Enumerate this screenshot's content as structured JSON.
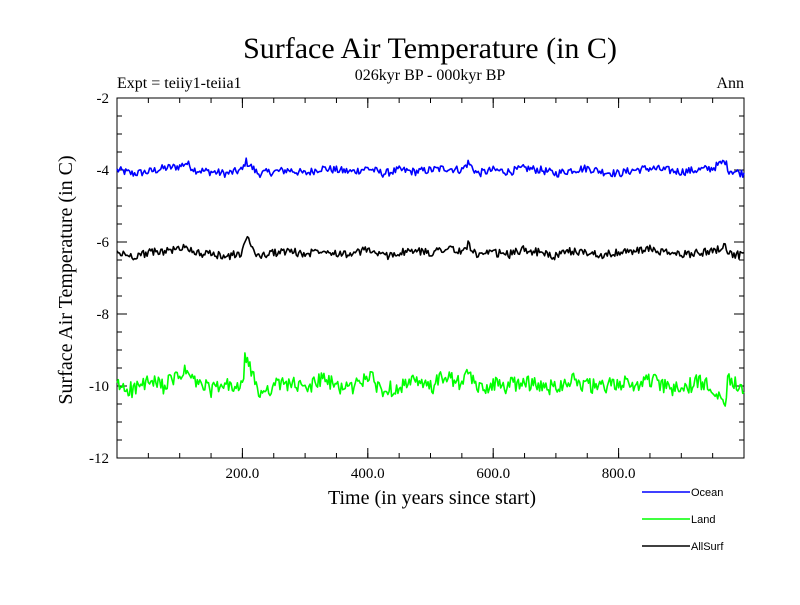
{
  "chart_data": {
    "type": "line",
    "title": "Surface Air Temperature (in C)",
    "subtitle": "026kyr BP - 000kyr BP",
    "experiment_label": "Expt = teiiy1-teiia1",
    "period_label": "Ann",
    "xlabel": "Time (in years since start)",
    "ylabel": "Surface Air Temperature (in C)",
    "xlim": [
      0,
      1000
    ],
    "ylim": [
      -12,
      -2
    ],
    "x_ticks": [
      200,
      400,
      600,
      800
    ],
    "x_tick_labels": [
      "200.0",
      "400.0",
      "600.0",
      "800.0"
    ],
    "y_ticks": [
      -2,
      -4,
      -6,
      -8,
      -10,
      -12
    ],
    "y_tick_labels": [
      "-2",
      "-4",
      "-6",
      "-8",
      "-10",
      "-12"
    ],
    "grid": false,
    "legend_position": "bottom-right",
    "series": [
      {
        "name": "Ocean",
        "color": "#0000ff",
        "x": [
          0,
          25,
          50,
          75,
          100,
          110,
          125,
          150,
          175,
          200,
          205,
          225,
          250,
          275,
          300,
          325,
          350,
          375,
          400,
          425,
          450,
          475,
          500,
          525,
          550,
          560,
          575,
          600,
          625,
          650,
          675,
          700,
          725,
          750,
          775,
          800,
          825,
          850,
          875,
          900,
          925,
          950,
          970,
          975,
          1000
        ],
        "values": [
          -4.0,
          -4.1,
          -4.05,
          -3.95,
          -3.9,
          -3.8,
          -4.0,
          -4.05,
          -4.1,
          -4.0,
          -3.75,
          -4.1,
          -4.05,
          -4.0,
          -4.1,
          -3.95,
          -4.0,
          -4.05,
          -3.95,
          -4.1,
          -4.0,
          -4.05,
          -4.0,
          -3.95,
          -4.0,
          -3.8,
          -4.1,
          -4.0,
          -4.05,
          -3.95,
          -4.0,
          -4.1,
          -4.0,
          -3.95,
          -4.05,
          -4.1,
          -4.0,
          -3.95,
          -4.0,
          -4.05,
          -4.0,
          -3.95,
          -3.75,
          -4.0,
          -4.1
        ]
      },
      {
        "name": "Land",
        "color": "#00ff00",
        "x": [
          0,
          25,
          50,
          75,
          100,
          110,
          125,
          150,
          175,
          200,
          205,
          225,
          250,
          275,
          300,
          325,
          350,
          375,
          400,
          425,
          450,
          475,
          500,
          525,
          550,
          560,
          575,
          600,
          625,
          650,
          675,
          700,
          725,
          750,
          775,
          800,
          825,
          850,
          875,
          900,
          925,
          950,
          970,
          975,
          1000
        ],
        "values": [
          -10.0,
          -10.1,
          -9.9,
          -10.0,
          -9.7,
          -9.6,
          -9.9,
          -10.1,
          -10.0,
          -10.05,
          -9.1,
          -10.2,
          -10.0,
          -9.9,
          -10.1,
          -9.8,
          -10.0,
          -10.05,
          -9.7,
          -10.15,
          -10.0,
          -9.9,
          -10.05,
          -9.7,
          -10.0,
          -9.6,
          -10.1,
          -9.95,
          -10.0,
          -9.85,
          -10.05,
          -10.0,
          -9.8,
          -10.0,
          -10.05,
          -9.9,
          -10.0,
          -9.8,
          -10.05,
          -10.1,
          -9.9,
          -10.0,
          -10.4,
          -9.8,
          -10.0
        ]
      },
      {
        "name": "AllSurf",
        "color": "#000000",
        "x": [
          0,
          25,
          50,
          75,
          100,
          110,
          125,
          150,
          175,
          200,
          205,
          225,
          250,
          275,
          300,
          325,
          350,
          375,
          400,
          425,
          450,
          475,
          500,
          525,
          550,
          560,
          575,
          600,
          625,
          650,
          675,
          700,
          725,
          750,
          775,
          800,
          825,
          850,
          875,
          900,
          925,
          950,
          970,
          975,
          1000
        ],
        "values": [
          -6.3,
          -6.4,
          -6.3,
          -6.25,
          -6.2,
          -6.1,
          -6.3,
          -6.35,
          -6.4,
          -6.3,
          -5.85,
          -6.4,
          -6.3,
          -6.25,
          -6.35,
          -6.2,
          -6.3,
          -6.35,
          -6.2,
          -6.4,
          -6.3,
          -6.25,
          -6.3,
          -6.15,
          -6.3,
          -6.05,
          -6.4,
          -6.3,
          -6.35,
          -6.2,
          -6.3,
          -6.4,
          -6.25,
          -6.3,
          -6.35,
          -6.3,
          -6.25,
          -6.2,
          -6.3,
          -6.35,
          -6.3,
          -6.25,
          -6.1,
          -6.3,
          -6.4
        ]
      }
    ]
  }
}
